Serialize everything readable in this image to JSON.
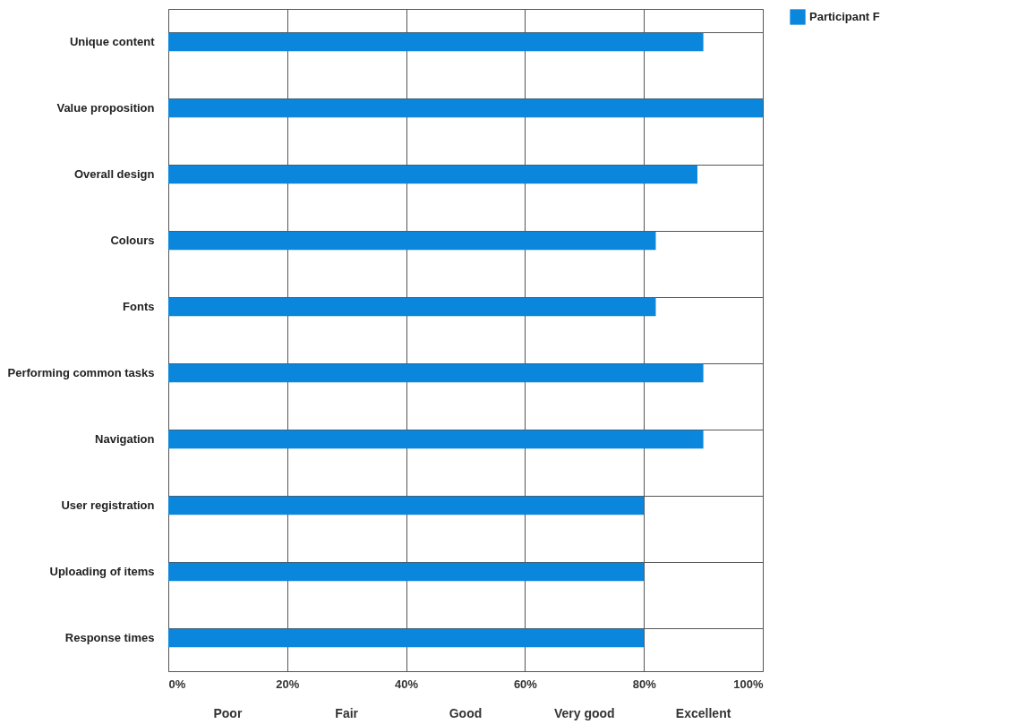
{
  "chart_data": {
    "type": "bar",
    "orientation": "horizontal",
    "categories": [
      "Unique content",
      "Value proposition",
      "Overall design",
      "Colours",
      "Fonts",
      "Performing common tasks",
      "Navigation",
      "User registration",
      "Uploading of items",
      "Response times"
    ],
    "series": [
      {
        "name": "Participant F",
        "color": "#0a86dc",
        "values": [
          90,
          100,
          89,
          82,
          82,
          90,
          90,
          80,
          80,
          80
        ]
      }
    ],
    "xlim": [
      0,
      100
    ],
    "xticks": [
      {
        "value": 0,
        "label": "0%"
      },
      {
        "value": 20,
        "label": "20%"
      },
      {
        "value": 40,
        "label": "40%"
      },
      {
        "value": 60,
        "label": "60%"
      },
      {
        "value": 80,
        "label": "80%"
      },
      {
        "value": 100,
        "label": "100%"
      }
    ],
    "annotations": [
      "Poor",
      "Fair",
      "Good",
      "Very good",
      "Excellent"
    ],
    "grid": true,
    "legend": "right"
  }
}
